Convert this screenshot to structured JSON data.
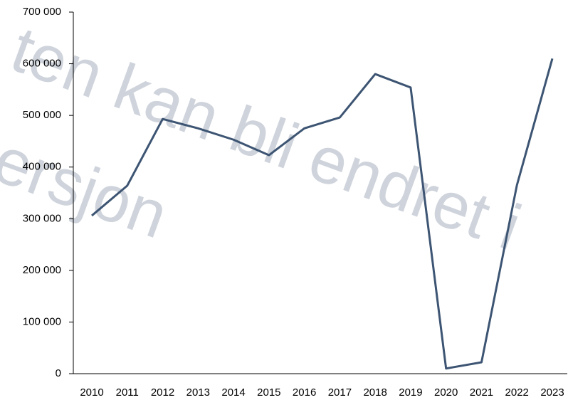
{
  "chart_data": {
    "type": "line",
    "categories": [
      "2010",
      "2011",
      "2012",
      "2013",
      "2014",
      "2015",
      "2016",
      "2017",
      "2018",
      "2019",
      "2020",
      "2021",
      "2022",
      "2023"
    ],
    "series": [
      {
        "color": "#3d5573",
        "values": [
          306000,
          364000,
          493000,
          475000,
          453000,
          423000,
          475000,
          496000,
          580000,
          554000,
          10000,
          22000,
          365000,
          610000
        ]
      }
    ],
    "ylim": [
      0,
      700000
    ],
    "yticks": [
      0,
      {
        "value": 100000,
        "label": "100 000"
      },
      {
        "value": 200000,
        "label": "200 000"
      },
      {
        "value": 300000,
        "label": "300 000"
      },
      {
        "value": 400000,
        "label": "400 000"
      },
      {
        "value": 500000,
        "label": "500 000"
      },
      {
        "value": 600000,
        "label": "600 000"
      },
      {
        "value": 700000,
        "label": "700 000"
      }
    ],
    "grid": false,
    "watermark": [
      "ten kan bli endret i",
      "ersjon"
    ]
  }
}
